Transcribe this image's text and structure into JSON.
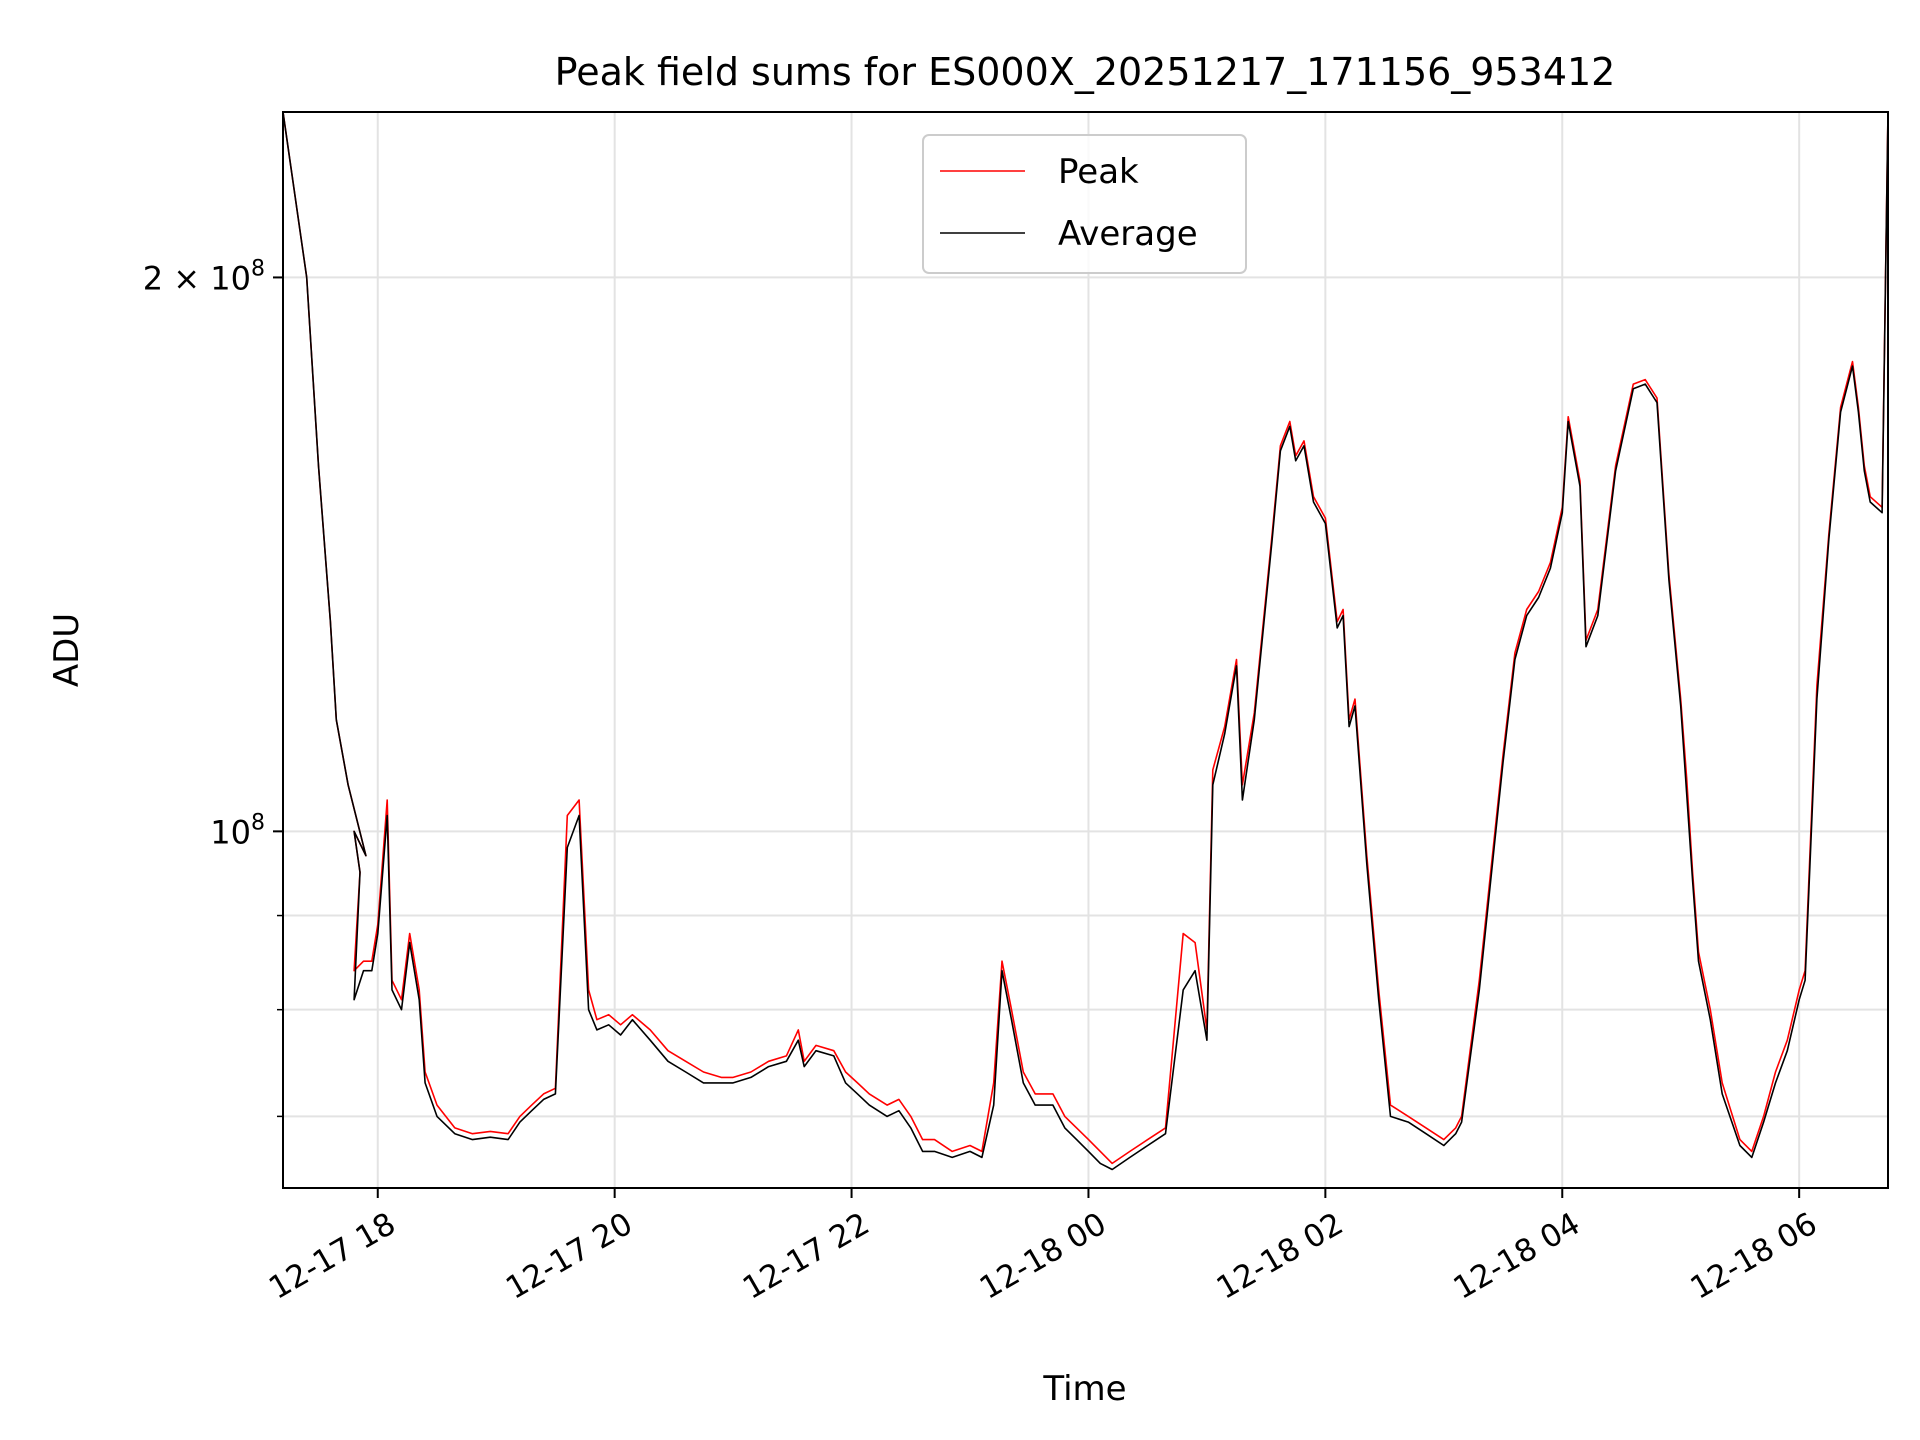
{
  "chart_data": {
    "type": "line",
    "title": "Peak field sums for ES000X_20251217_171156_953412",
    "xlabel": "Time",
    "ylabel": "ADU",
    "yscale": "log",
    "ylim": [
      64000000,
      246000000
    ],
    "xlim": [
      -0.8,
      12.75
    ],
    "x_unit": "hours since 12-17 18:00",
    "grid": true,
    "legend_position": "upper center",
    "x_ticks": [
      {
        "value": 0,
        "label": "12-17 18"
      },
      {
        "value": 2,
        "label": "12-17 20"
      },
      {
        "value": 4,
        "label": "12-17 22"
      },
      {
        "value": 6,
        "label": "12-18 00"
      },
      {
        "value": 8,
        "label": "12-18 02"
      },
      {
        "value": 10,
        "label": "12-18 04"
      },
      {
        "value": 12,
        "label": "12-18 06"
      }
    ],
    "y_major_ticks": [
      {
        "value": 100000000,
        "mantissa": "",
        "base": "10",
        "exp": "8"
      },
      {
        "value": 200000000,
        "mantissa": "2 × ",
        "base": "10",
        "exp": "8"
      }
    ],
    "y_minor_ticks": [
      70000000,
      80000000,
      90000000
    ],
    "series": [
      {
        "name": "Peak",
        "color": "#ff0000",
        "points": [
          [
            -0.8,
            246
          ],
          [
            -0.6,
            200
          ],
          [
            -0.5,
            158
          ],
          [
            -0.4,
            130
          ],
          [
            -0.35,
            115
          ],
          [
            -0.25,
            106
          ],
          [
            -0.1,
            97
          ],
          [
            -0.2,
            100
          ],
          [
            -0.15,
            95
          ],
          [
            -0.2,
            84
          ],
          [
            -0.12,
            85
          ],
          [
            -0.05,
            85
          ],
          [
            0.0,
            89
          ],
          [
            0.08,
            104
          ],
          [
            0.12,
            83
          ],
          [
            0.2,
            81
          ],
          [
            0.27,
            88
          ],
          [
            0.35,
            82
          ],
          [
            0.4,
            74
          ],
          [
            0.5,
            71
          ],
          [
            0.65,
            69
          ],
          [
            0.8,
            68.5
          ],
          [
            0.95,
            68.7
          ],
          [
            1.1,
            68.5
          ],
          [
            1.2,
            70
          ],
          [
            1.3,
            71
          ],
          [
            1.4,
            72
          ],
          [
            1.5,
            72.5
          ],
          [
            1.6,
            102
          ],
          [
            1.7,
            104
          ],
          [
            1.78,
            82
          ],
          [
            1.85,
            79
          ],
          [
            1.95,
            79.5
          ],
          [
            2.05,
            78.5
          ],
          [
            2.15,
            79.5
          ],
          [
            2.3,
            78
          ],
          [
            2.45,
            76
          ],
          [
            2.6,
            75
          ],
          [
            2.75,
            74
          ],
          [
            2.9,
            73.5
          ],
          [
            3.0,
            73.5
          ],
          [
            3.15,
            74
          ],
          [
            3.3,
            75
          ],
          [
            3.45,
            75.5
          ],
          [
            3.55,
            78
          ],
          [
            3.6,
            75
          ],
          [
            3.7,
            76.5
          ],
          [
            3.85,
            76
          ],
          [
            3.95,
            74
          ],
          [
            4.05,
            73
          ],
          [
            4.15,
            72
          ],
          [
            4.3,
            71
          ],
          [
            4.4,
            71.5
          ],
          [
            4.5,
            70
          ],
          [
            4.6,
            68
          ],
          [
            4.7,
            68
          ],
          [
            4.85,
            67
          ],
          [
            5.0,
            67.5
          ],
          [
            5.1,
            67
          ],
          [
            5.2,
            73
          ],
          [
            5.27,
            85
          ],
          [
            5.35,
            80
          ],
          [
            5.45,
            74
          ],
          [
            5.55,
            72
          ],
          [
            5.7,
            72
          ],
          [
            5.8,
            70
          ],
          [
            5.9,
            69
          ],
          [
            6.0,
            68
          ],
          [
            6.1,
            67
          ],
          [
            6.2,
            66
          ],
          [
            6.35,
            67
          ],
          [
            6.5,
            68
          ],
          [
            6.65,
            69
          ],
          [
            6.8,
            88
          ],
          [
            6.9,
            87
          ],
          [
            7.0,
            78
          ],
          [
            7.05,
            108
          ],
          [
            7.15,
            114
          ],
          [
            7.25,
            124
          ],
          [
            7.3,
            106
          ],
          [
            7.4,
            116
          ],
          [
            7.55,
            145
          ],
          [
            7.62,
            162
          ],
          [
            7.7,
            167
          ],
          [
            7.75,
            160
          ],
          [
            7.82,
            163
          ],
          [
            7.9,
            152
          ],
          [
            8.0,
            148
          ],
          [
            8.1,
            130
          ],
          [
            8.15,
            132
          ],
          [
            8.2,
            115
          ],
          [
            8.25,
            118
          ],
          [
            8.35,
            97
          ],
          [
            8.45,
            82
          ],
          [
            8.55,
            71
          ],
          [
            8.7,
            70
          ],
          [
            8.85,
            69
          ],
          [
            9.0,
            68
          ],
          [
            9.1,
            69
          ],
          [
            9.15,
            70
          ],
          [
            9.3,
            83
          ],
          [
            9.5,
            110
          ],
          [
            9.6,
            125
          ],
          [
            9.7,
            132
          ],
          [
            9.8,
            135
          ],
          [
            9.9,
            140
          ],
          [
            10.0,
            150
          ],
          [
            10.05,
            168
          ],
          [
            10.15,
            155
          ],
          [
            10.2,
            127
          ],
          [
            10.3,
            132
          ],
          [
            10.45,
            158
          ],
          [
            10.6,
            175
          ],
          [
            10.7,
            176
          ],
          [
            10.8,
            172
          ],
          [
            10.9,
            138
          ],
          [
            11.0,
            118
          ],
          [
            11.05,
            107
          ],
          [
            11.1,
            95
          ],
          [
            11.15,
            86
          ],
          [
            11.25,
            80
          ],
          [
            11.35,
            73
          ],
          [
            11.5,
            68
          ],
          [
            11.6,
            67
          ],
          [
            11.7,
            70
          ],
          [
            11.8,
            74
          ],
          [
            11.9,
            77
          ],
          [
            12.0,
            82
          ],
          [
            12.05,
            84
          ],
          [
            12.15,
            120
          ],
          [
            12.25,
            145
          ],
          [
            12.35,
            170
          ],
          [
            12.45,
            180
          ],
          [
            12.5,
            170
          ],
          [
            12.55,
            158
          ],
          [
            12.6,
            152
          ],
          [
            12.7,
            150
          ],
          [
            12.75,
            246
          ]
        ]
      },
      {
        "name": "Average",
        "color": "#000000",
        "points": [
          [
            -0.8,
            246
          ],
          [
            -0.6,
            200
          ],
          [
            -0.5,
            158
          ],
          [
            -0.4,
            130
          ],
          [
            -0.35,
            115
          ],
          [
            -0.25,
            106
          ],
          [
            -0.1,
            97
          ],
          [
            -0.2,
            100
          ],
          [
            -0.15,
            95
          ],
          [
            -0.2,
            81
          ],
          [
            -0.12,
            84
          ],
          [
            -0.05,
            84
          ],
          [
            0.0,
            88
          ],
          [
            0.08,
            102
          ],
          [
            0.12,
            82
          ],
          [
            0.2,
            80
          ],
          [
            0.27,
            87
          ],
          [
            0.35,
            81
          ],
          [
            0.4,
            73
          ],
          [
            0.5,
            70
          ],
          [
            0.65,
            68.5
          ],
          [
            0.8,
            68
          ],
          [
            0.95,
            68.2
          ],
          [
            1.1,
            68
          ],
          [
            1.2,
            69.5
          ],
          [
            1.3,
            70.5
          ],
          [
            1.4,
            71.5
          ],
          [
            1.5,
            72
          ],
          [
            1.6,
            98
          ],
          [
            1.7,
            102
          ],
          [
            1.78,
            80
          ],
          [
            1.85,
            78
          ],
          [
            1.95,
            78.5
          ],
          [
            2.05,
            77.5
          ],
          [
            2.15,
            79
          ],
          [
            2.3,
            77
          ],
          [
            2.45,
            75
          ],
          [
            2.6,
            74
          ],
          [
            2.75,
            73
          ],
          [
            2.9,
            73
          ],
          [
            3.0,
            73
          ],
          [
            3.15,
            73.5
          ],
          [
            3.3,
            74.5
          ],
          [
            3.45,
            75
          ],
          [
            3.55,
            77
          ],
          [
            3.6,
            74.5
          ],
          [
            3.7,
            76
          ],
          [
            3.85,
            75.5
          ],
          [
            3.95,
            73
          ],
          [
            4.05,
            72
          ],
          [
            4.15,
            71
          ],
          [
            4.3,
            70
          ],
          [
            4.4,
            70.5
          ],
          [
            4.5,
            69
          ],
          [
            4.6,
            67
          ],
          [
            4.7,
            67
          ],
          [
            4.85,
            66.5
          ],
          [
            5.0,
            67
          ],
          [
            5.1,
            66.5
          ],
          [
            5.2,
            71
          ],
          [
            5.27,
            84
          ],
          [
            5.35,
            79
          ],
          [
            5.45,
            73
          ],
          [
            5.55,
            71
          ],
          [
            5.7,
            71
          ],
          [
            5.8,
            69
          ],
          [
            5.9,
            68
          ],
          [
            6.0,
            67
          ],
          [
            6.1,
            66
          ],
          [
            6.2,
            65.5
          ],
          [
            6.35,
            66.5
          ],
          [
            6.5,
            67.5
          ],
          [
            6.65,
            68.5
          ],
          [
            6.8,
            82
          ],
          [
            6.9,
            84
          ],
          [
            7.0,
            77
          ],
          [
            7.05,
            106
          ],
          [
            7.15,
            113
          ],
          [
            7.25,
            123
          ],
          [
            7.3,
            104
          ],
          [
            7.4,
            115
          ],
          [
            7.55,
            144
          ],
          [
            7.62,
            161
          ],
          [
            7.7,
            166
          ],
          [
            7.75,
            159
          ],
          [
            7.82,
            162
          ],
          [
            7.9,
            151
          ],
          [
            8.0,
            147
          ],
          [
            8.1,
            129
          ],
          [
            8.15,
            131
          ],
          [
            8.2,
            114
          ],
          [
            8.25,
            117
          ],
          [
            8.35,
            96
          ],
          [
            8.45,
            81
          ],
          [
            8.55,
            70
          ],
          [
            8.7,
            69.5
          ],
          [
            8.85,
            68.5
          ],
          [
            9.0,
            67.5
          ],
          [
            9.1,
            68.5
          ],
          [
            9.15,
            69.5
          ],
          [
            9.3,
            82
          ],
          [
            9.5,
            109
          ],
          [
            9.6,
            124
          ],
          [
            9.7,
            131
          ],
          [
            9.8,
            134
          ],
          [
            9.9,
            139
          ],
          [
            10.0,
            149
          ],
          [
            10.05,
            167
          ],
          [
            10.15,
            154
          ],
          [
            10.2,
            126
          ],
          [
            10.3,
            131
          ],
          [
            10.45,
            157
          ],
          [
            10.6,
            174
          ],
          [
            10.7,
            175
          ],
          [
            10.8,
            171
          ],
          [
            10.9,
            137
          ],
          [
            11.0,
            117
          ],
          [
            11.05,
            105
          ],
          [
            11.1,
            94
          ],
          [
            11.15,
            85
          ],
          [
            11.25,
            79
          ],
          [
            11.35,
            72
          ],
          [
            11.5,
            67.5
          ],
          [
            11.6,
            66.5
          ],
          [
            11.7,
            69.5
          ],
          [
            11.8,
            73
          ],
          [
            11.9,
            76
          ],
          [
            12.0,
            81
          ],
          [
            12.05,
            83
          ],
          [
            12.15,
            118
          ],
          [
            12.25,
            144
          ],
          [
            12.35,
            169
          ],
          [
            12.45,
            179
          ],
          [
            12.5,
            169
          ],
          [
            12.55,
            157
          ],
          [
            12.6,
            151
          ],
          [
            12.7,
            149
          ],
          [
            12.75,
            246
          ]
        ]
      }
    ]
  }
}
